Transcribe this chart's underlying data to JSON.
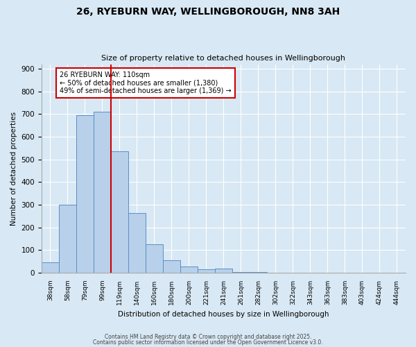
{
  "title": "26, RYEBURN WAY, WELLINGBOROUGH, NN8 3AH",
  "subtitle": "Size of property relative to detached houses in Wellingborough",
  "xlabel": "Distribution of detached houses by size in Wellingborough",
  "ylabel": "Number of detached properties",
  "categories": [
    "38sqm",
    "58sqm",
    "79sqm",
    "99sqm",
    "119sqm",
    "140sqm",
    "160sqm",
    "180sqm",
    "200sqm",
    "221sqm",
    "241sqm",
    "261sqm",
    "282sqm",
    "302sqm",
    "322sqm",
    "343sqm",
    "363sqm",
    "383sqm",
    "403sqm",
    "424sqm",
    "444sqm"
  ],
  "values": [
    45,
    300,
    695,
    710,
    535,
    265,
    125,
    55,
    28,
    15,
    18,
    3,
    2,
    1,
    1,
    1,
    0,
    0,
    1,
    0,
    1
  ],
  "bar_color": "#b8d0ea",
  "bar_edge_color": "#5b8ec4",
  "vline_color": "#cc0000",
  "annotation_text": "26 RYEBURN WAY: 110sqm\n← 50% of detached houses are smaller (1,380)\n49% of semi-detached houses are larger (1,369) →",
  "annotation_box_facecolor": "#ffffff",
  "annotation_box_edgecolor": "#cc0000",
  "ylim": [
    0,
    920
  ],
  "yticks": [
    0,
    100,
    200,
    300,
    400,
    500,
    600,
    700,
    800,
    900
  ],
  "background_color": "#d8e8f4",
  "footer_line1": "Contains HM Land Registry data © Crown copyright and database right 2025.",
  "footer_line2": "Contains public sector information licensed under the Open Government Licence v3.0."
}
